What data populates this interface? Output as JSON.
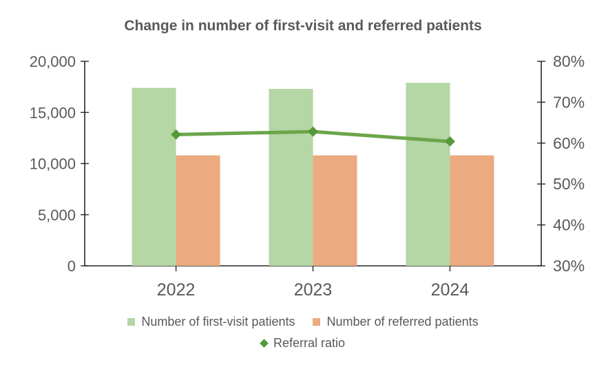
{
  "chart_data": {
    "type": "combo",
    "title": "Change in number of first-visit and referred patients",
    "categories": [
      "2022",
      "2023",
      "2024"
    ],
    "series": [
      {
        "name": "Number of first-visit patients",
        "chart_type": "bar",
        "axis": "left",
        "values": [
          17400,
          17300,
          17900
        ],
        "color": "#b5d6a5",
        "legend_marker": "square"
      },
      {
        "name": "Number of referred patients",
        "chart_type": "bar",
        "axis": "left",
        "values": [
          10800,
          10800,
          10800
        ],
        "color": "#ecaa80",
        "legend_marker": "square"
      },
      {
        "name": "Referral ratio",
        "chart_type": "line",
        "axis": "right",
        "values": [
          62.1,
          62.8,
          60.4
        ],
        "unit": "%",
        "color": "#6ba64a",
        "marker_color": "#55993a",
        "legend_marker": "diamond"
      }
    ],
    "left_axis": {
      "min": 0,
      "max": 20000,
      "step": 5000,
      "tick_labels_top_to_bottom": [
        "20,000",
        "15,000",
        "10,000",
        "5,000",
        "0"
      ]
    },
    "right_axis": {
      "min": 30,
      "max": 80,
      "step": 10,
      "tick_labels_top_to_bottom": [
        "80%",
        "70%",
        "60%",
        "50%",
        "40%",
        "30%"
      ]
    },
    "gridlines": false,
    "legend_position": "bottom",
    "text_color": "#595959",
    "axis_color": "#262626",
    "background": "#ffffff"
  }
}
